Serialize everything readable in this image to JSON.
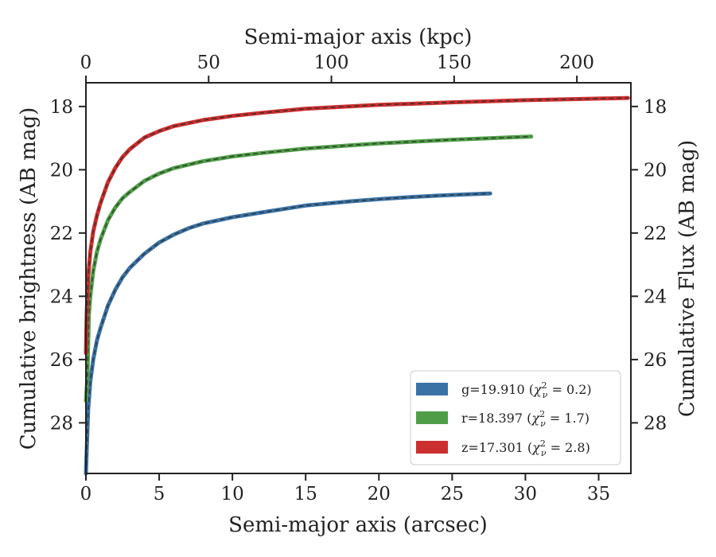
{
  "chart_data": {
    "type": "line",
    "bottom_axis": {
      "label": "Semi-major axis (arcsec)",
      "range": [
        0,
        37.2
      ],
      "ticks": [
        0,
        5,
        10,
        15,
        20,
        25,
        30,
        35
      ],
      "tick_labels": [
        "0",
        "5",
        "10",
        "15",
        "20",
        "25",
        "30",
        "35"
      ]
    },
    "top_axis": {
      "label": "Semi-major axis (kpc)",
      "range": [
        0,
        222
      ],
      "ticks": [
        0,
        50,
        100,
        150,
        200
      ],
      "tick_labels": [
        "0",
        "50",
        "100",
        "150",
        "200"
      ]
    },
    "left_axis": {
      "label": "Cumulative brightness (AB mag)",
      "range": [
        29.6,
        17.25
      ],
      "inverted": true,
      "ticks": [
        18,
        20,
        22,
        24,
        26,
        28
      ],
      "tick_labels": [
        "18",
        "20",
        "22",
        "24",
        "26",
        "28"
      ]
    },
    "right_axis": {
      "label": "Cumulative Flux (AB mag)",
      "ticks": [
        18,
        20,
        22,
        24,
        26,
        28
      ],
      "tick_labels": [
        "18",
        "20",
        "22",
        "24",
        "26",
        "28"
      ]
    },
    "grid": false,
    "legend_position": "lower-right",
    "series": [
      {
        "name": "g=19.910 (χ²ᵥ = 0.2)",
        "color": "#3a72a6",
        "x": [
          0,
          0.15,
          0.3,
          0.5,
          0.75,
          1,
          1.5,
          2,
          2.5,
          3,
          4,
          5,
          6,
          7,
          8,
          10,
          12,
          15,
          18,
          20,
          22,
          24,
          26,
          27.6
        ],
        "y": [
          29.6,
          27.6,
          26.7,
          26.0,
          25.4,
          25.0,
          24.3,
          23.8,
          23.4,
          23.1,
          22.65,
          22.3,
          22.05,
          21.85,
          21.7,
          21.5,
          21.35,
          21.13,
          21.0,
          20.93,
          20.87,
          20.82,
          20.78,
          20.75
        ]
      },
      {
        "name": "r=18.397 (χ²ᵥ = 1.7)",
        "color": "#4f9e47",
        "x": [
          0,
          0.1,
          0.2,
          0.3,
          0.5,
          0.75,
          1,
          1.5,
          2,
          2.5,
          3,
          4,
          5,
          6,
          8,
          10,
          12,
          15,
          18,
          20,
          25,
          30.4
        ],
        "y": [
          27.3,
          26.6,
          24.6,
          24.0,
          23.2,
          22.6,
          22.2,
          21.6,
          21.2,
          20.9,
          20.7,
          20.35,
          20.12,
          19.95,
          19.73,
          19.58,
          19.47,
          19.33,
          19.23,
          19.17,
          19.05,
          18.95
        ]
      },
      {
        "name": "z=17.301 (χ²ᵥ = 2.8)",
        "color": "#cc2f2f",
        "x": [
          0,
          0.05,
          0.15,
          0.3,
          0.5,
          0.75,
          1,
          1.5,
          2,
          2.5,
          3,
          4,
          5,
          6,
          8,
          10,
          12,
          15,
          20,
          25,
          30,
          35,
          37
        ],
        "y": [
          25.8,
          24.6,
          23.4,
          22.6,
          21.95,
          21.45,
          21.05,
          20.4,
          19.95,
          19.6,
          19.35,
          18.98,
          18.78,
          18.62,
          18.43,
          18.3,
          18.2,
          18.07,
          17.95,
          17.87,
          17.8,
          17.75,
          17.73
        ]
      }
    ]
  },
  "legend": [
    {
      "color": "#3a72a6",
      "label": "g=19.910",
      "chi_value": "0.2"
    },
    {
      "color": "#4f9e47",
      "label": "r=18.397",
      "chi_value": "1.7"
    },
    {
      "color": "#cc2f2f",
      "label": "z=17.301",
      "chi_value": "2.8"
    }
  ]
}
